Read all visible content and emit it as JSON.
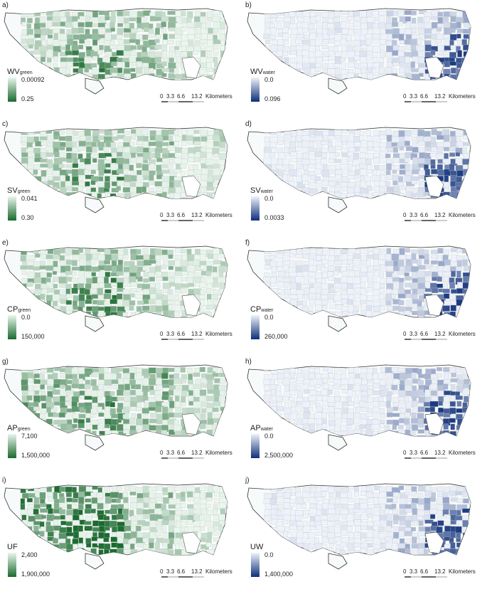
{
  "panels": [
    {
      "letter": "a)",
      "legend": {
        "main": "WV",
        "sub": "green",
        "top": "0.00092",
        "bottom": "0.25",
        "scheme": "green"
      }
    },
    {
      "letter": "b)",
      "legend": {
        "main": "WV",
        "sub": "water",
        "top": "0.0",
        "bottom": "0.096",
        "scheme": "blue"
      }
    },
    {
      "letter": "c)",
      "legend": {
        "main": "SV",
        "sub": "green",
        "top": "0.041",
        "bottom": "0.30",
        "scheme": "green"
      }
    },
    {
      "letter": "d)",
      "legend": {
        "main": "SV",
        "sub": "water",
        "top": "0.0",
        "bottom": "0.0033",
        "scheme": "blue"
      }
    },
    {
      "letter": "e)",
      "legend": {
        "main": "CP",
        "sub": "green",
        "top": "0.0",
        "bottom": "150,000",
        "scheme": "green"
      }
    },
    {
      "letter": "f)",
      "legend": {
        "main": "CP",
        "sub": "water",
        "top": "0.0",
        "bottom": "260,000",
        "scheme": "blue"
      }
    },
    {
      "letter": "g)",
      "legend": {
        "main": "AP",
        "sub": "green",
        "top": "7,100",
        "bottom": "1,500,000",
        "scheme": "green"
      }
    },
    {
      "letter": "h)",
      "legend": {
        "main": "AP",
        "sub": "water",
        "top": "0.0",
        "bottom": "2,500,000",
        "scheme": "blue"
      }
    },
    {
      "letter": "i)",
      "legend": {
        "main": "UF",
        "sub": "",
        "top": "2,400",
        "bottom": "1,900,000",
        "scheme": "green"
      }
    },
    {
      "letter": "j)",
      "legend": {
        "main": "UW",
        "sub": "",
        "top": "0.0",
        "bottom": "1,400,000",
        "scheme": "blue"
      }
    }
  ],
  "scalebar": {
    "ticks": [
      "0",
      "3.3",
      "6.6",
      "13.2"
    ],
    "unit": "Kilometers"
  },
  "colors": {
    "green_light": "#eaf6ee",
    "green_dark": "#1b6b2f",
    "blue_light": "#eef3fb",
    "blue_dark": "#0d2f7a",
    "boundary": "#333333",
    "district": "#c4c4c4"
  }
}
